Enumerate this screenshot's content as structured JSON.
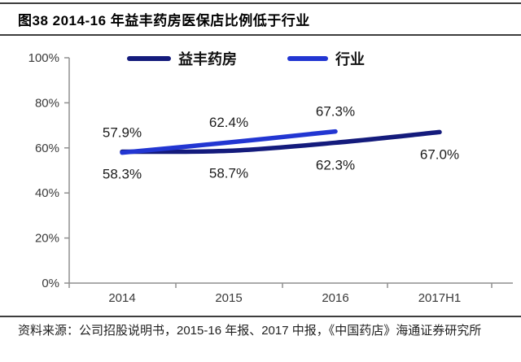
{
  "figure": {
    "title": "图38 2014-16 年益丰药房医保店比例低于行业",
    "source": "资料来源：公司招股说明书，2015-16 年报、2017 中报，《中国药店》海通证券研究所"
  },
  "colors": {
    "yifeng": "#141b7c",
    "industry": "#2236d2",
    "axis": "#8f8f8f",
    "tick_label": "#3a3a3a",
    "data_label": "#1c1c1c"
  },
  "chart_data": {
    "type": "line",
    "title": "2014-16 年益丰药房医保店比例低于行业",
    "categories": [
      "2014",
      "2015",
      "2016",
      "2017H1"
    ],
    "series": [
      {
        "name": "益丰药房",
        "values": [
          58.3,
          58.7,
          62.3,
          67.0
        ],
        "labels": [
          "58.3%",
          "58.7%",
          "62.3%",
          "67.0%"
        ],
        "color_key": "yifeng",
        "label_side": "below"
      },
      {
        "name": "行业",
        "values": [
          57.9,
          62.4,
          67.3,
          null
        ],
        "labels": [
          "57.9%",
          "62.4%",
          "67.3%"
        ],
        "color_key": "industry",
        "label_side": "above"
      }
    ],
    "ylim": [
      0,
      100
    ],
    "y_ticks": [
      "0%",
      "20%",
      "40%",
      "60%",
      "80%",
      "100%"
    ],
    "y_tick_values": [
      0,
      20,
      40,
      60,
      80,
      100
    ],
    "grid": false,
    "smooth": true,
    "legend_position": "top"
  }
}
